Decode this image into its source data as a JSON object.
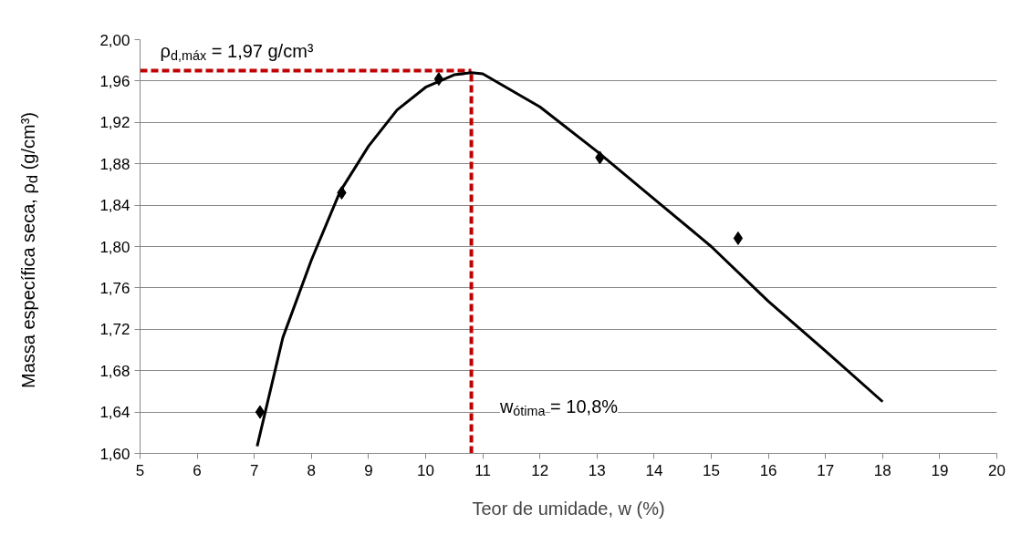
{
  "chart_data": {
    "type": "scatter",
    "xlabel": "Teor de umidade, w (%)",
    "ylabel": "Massa específica seca, ρ$_{d}$ (g/cm³)",
    "xlim": [
      5,
      20
    ],
    "xticks": [
      5,
      6,
      7,
      8,
      9,
      10,
      11,
      12,
      13,
      14,
      15,
      16,
      17,
      18,
      19,
      20
    ],
    "ylim": [
      1.6,
      2.0
    ],
    "yticks": [
      {
        "value": 1.6,
        "label": "1,60"
      },
      {
        "value": 1.64,
        "label": "1,64"
      },
      {
        "value": 1.68,
        "label": "1,68"
      },
      {
        "value": 1.72,
        "label": "1,72"
      },
      {
        "value": 1.76,
        "label": "1,76"
      },
      {
        "value": 1.8,
        "label": "1,80"
      },
      {
        "value": 1.84,
        "label": "1,84"
      },
      {
        "value": 1.88,
        "label": "1,88"
      },
      {
        "value": 1.92,
        "label": "1,92"
      },
      {
        "value": 1.96,
        "label": "1,96"
      },
      {
        "value": 2.0,
        "label": "2,00"
      }
    ],
    "grid": "y",
    "series": [
      {
        "marker": "diamond",
        "color": "#000000",
        "x": [
          7.1,
          8.53,
          10.23,
          13.05,
          15.47
        ],
        "values": [
          1.64,
          1.852,
          1.962,
          1.886,
          1.808
        ]
      },
      {
        "type": "line",
        "marker": "none",
        "line_style": "solid",
        "color": "#000000",
        "x": [
          7.05,
          7.5,
          8,
          8.5,
          9,
          9.5,
          10,
          10.5,
          10.8,
          11,
          12,
          13,
          14,
          15,
          16,
          17,
          18
        ],
        "values": [
          1.607,
          1.712,
          1.787,
          1.853,
          1.897,
          1.932,
          1.954,
          1.966,
          1.968,
          1.967,
          1.935,
          1.892,
          1.846,
          1.8,
          1.747,
          1.699,
          1.65
        ]
      }
    ],
    "ref_lines": [
      {
        "axis": "y",
        "value": 1.97,
        "label": "ρ$_{d,máx}$ = 1,97 g/cm³",
        "color": "#c00000",
        "line_style": "dashed"
      },
      {
        "axis": "x",
        "value": 10.8,
        "label": "w$_{ótima}$ = 10,8%",
        "color": "#c00000",
        "line_style": "dashed"
      }
    ]
  }
}
